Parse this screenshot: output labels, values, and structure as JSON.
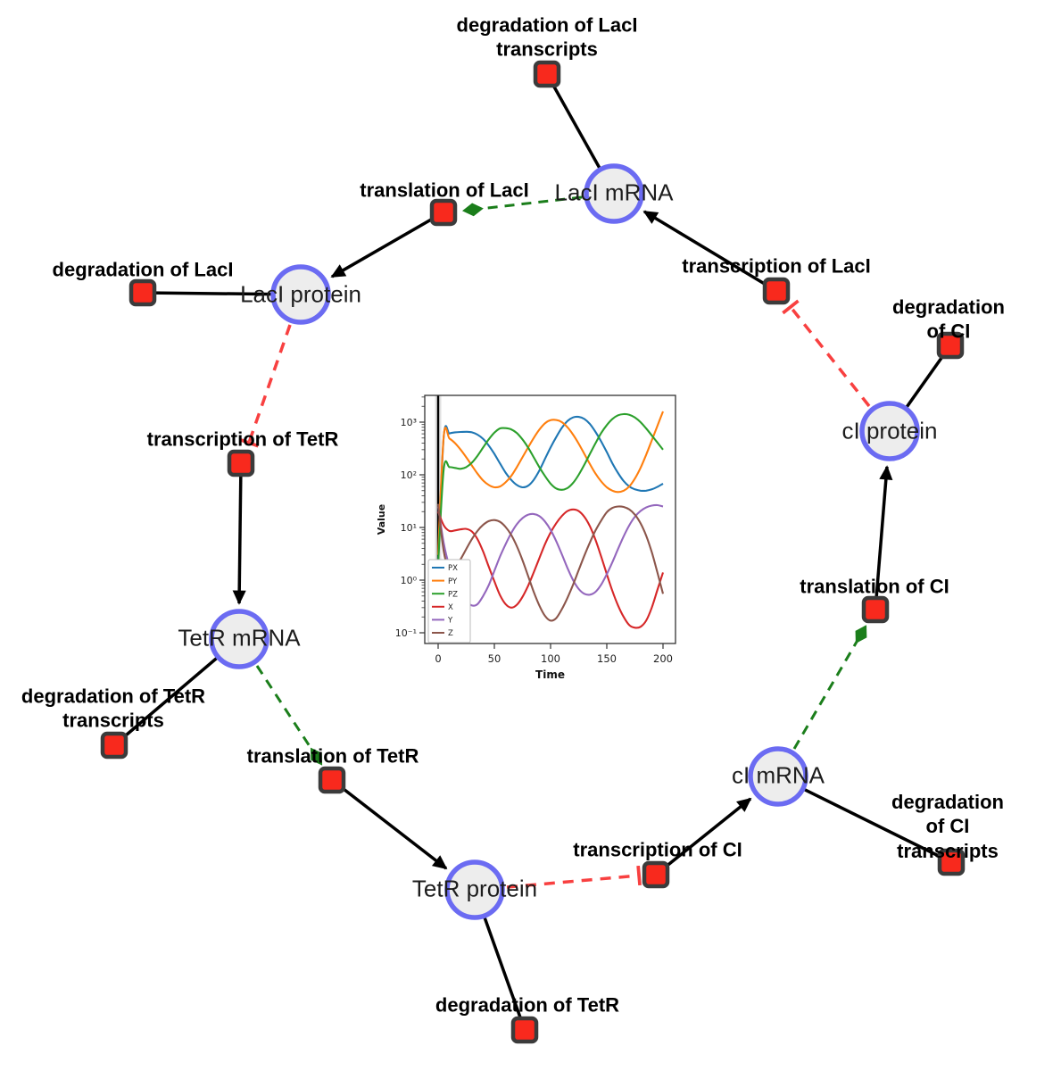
{
  "diagram": {
    "species": [
      {
        "id": "laci-mrna",
        "label": "LacI mRNA"
      },
      {
        "id": "laci-protein",
        "label": "LacI protein"
      },
      {
        "id": "tetr-mrna",
        "label": "TetR mRNA"
      },
      {
        "id": "tetr-protein",
        "label": "TetR protein"
      },
      {
        "id": "ci-mrna",
        "label": "cI mRNA"
      },
      {
        "id": "ci-protein",
        "label": "cI protein"
      }
    ],
    "reactions": [
      {
        "id": "deg-laci-transcripts",
        "label": "degradation of LacI\ntranscripts"
      },
      {
        "id": "translation-laci",
        "label": "translation of LacI"
      },
      {
        "id": "transcription-laci",
        "label": "transcription of LacI"
      },
      {
        "id": "deg-laci",
        "label": "degradation of LacI"
      },
      {
        "id": "transcription-tetr",
        "label": "transcription of TetR"
      },
      {
        "id": "deg-ci",
        "label": "degradation of CI"
      },
      {
        "id": "deg-tetr-transcripts",
        "label": "degradation of TetR\ntranscripts"
      },
      {
        "id": "translation-tetr",
        "label": "translation of TetR"
      },
      {
        "id": "translation-ci",
        "label": "translation of CI"
      },
      {
        "id": "deg-tetr",
        "label": "degradation of TetR"
      },
      {
        "id": "transcription-ci",
        "label": "transcription of CI"
      },
      {
        "id": "deg-ci-transcripts",
        "label": "degradation of CI\ntranscripts"
      }
    ],
    "edges": [
      {
        "from": "LacI mRNA",
        "to": "degradation of LacI transcripts",
        "type": "consumption"
      },
      {
        "from": "transcription of LacI",
        "to": "LacI mRNA",
        "type": "production"
      },
      {
        "from": "LacI mRNA",
        "to": "translation of LacI",
        "type": "modifier"
      },
      {
        "from": "translation of LacI",
        "to": "LacI protein",
        "type": "production"
      },
      {
        "from": "LacI protein",
        "to": "degradation of LacI",
        "type": "consumption"
      },
      {
        "from": "LacI protein",
        "to": "transcription of TetR",
        "type": "inhibition"
      },
      {
        "from": "transcription of TetR",
        "to": "TetR mRNA",
        "type": "production"
      },
      {
        "from": "TetR mRNA",
        "to": "degradation of TetR transcripts",
        "type": "consumption"
      },
      {
        "from": "TetR mRNA",
        "to": "translation of TetR",
        "type": "modifier"
      },
      {
        "from": "translation of TetR",
        "to": "TetR protein",
        "type": "production"
      },
      {
        "from": "TetR protein",
        "to": "degradation of TetR",
        "type": "consumption"
      },
      {
        "from": "TetR protein",
        "to": "transcription of CI",
        "type": "inhibition"
      },
      {
        "from": "transcription of CI",
        "to": "cI mRNA",
        "type": "production"
      },
      {
        "from": "cI mRNA",
        "to": "degradation of CI transcripts",
        "type": "consumption"
      },
      {
        "from": "cI mRNA",
        "to": "translation of CI",
        "type": "modifier"
      },
      {
        "from": "translation of CI",
        "to": "cI protein",
        "type": "production"
      },
      {
        "from": "cI protein",
        "to": "degradation of CI",
        "type": "consumption"
      },
      {
        "from": "cI protein",
        "to": "transcription of LacI",
        "type": "inhibition"
      }
    ],
    "colors": {
      "species_fill": "#ededed",
      "species_border": "#6b6bf2",
      "reaction_fill": "#f8291d",
      "reaction_border": "#3b3b3b",
      "edge_black": "#000000",
      "modifier_green": "#1b7e1b",
      "inhibition_red": "#f84040"
    }
  },
  "chart_data": {
    "type": "line",
    "title": "",
    "xlabel": "Time",
    "ylabel": "Value",
    "yscale": "log",
    "xlim": [
      -8,
      208
    ],
    "ylim": [
      0.07,
      3200
    ],
    "grid": false,
    "legend_position": "lower left",
    "x_ticks": [
      0,
      50,
      100,
      150,
      200
    ],
    "y_ticks": [
      0.1,
      1,
      10,
      100,
      1000
    ],
    "y_tick_labels": [
      "10⁻¹",
      "10⁰",
      "10¹",
      "10²",
      "10³"
    ],
    "initial_spike_x": 0,
    "x": [
      0,
      5,
      10,
      15,
      20,
      25,
      30,
      35,
      40,
      45,
      50,
      55,
      60,
      65,
      70,
      75,
      80,
      85,
      90,
      95,
      100,
      105,
      110,
      115,
      120,
      125,
      130,
      135,
      140,
      145,
      150,
      155,
      160,
      165,
      170,
      175,
      180,
      185,
      190,
      195,
      200
    ],
    "series": [
      {
        "name": "PX",
        "color": "#1f77b4",
        "values": [
          2,
          540,
          610,
          640,
          650,
          655,
          640,
          580,
          480,
          360,
          250,
          165,
          110,
          80,
          64,
          58,
          62,
          80,
          120,
          200,
          330,
          520,
          780,
          1050,
          1230,
          1260,
          1150,
          920,
          650,
          430,
          270,
          165,
          108,
          76,
          60,
          53,
          50,
          50,
          53,
          59,
          68
        ]
      },
      {
        "name": "PY",
        "color": "#ff7f0e",
        "values": [
          3,
          550,
          490,
          400,
          300,
          215,
          150,
          105,
          78,
          64,
          58,
          60,
          72,
          95,
          140,
          215,
          330,
          500,
          720,
          950,
          1090,
          1100,
          1000,
          800,
          580,
          390,
          250,
          160,
          105,
          75,
          58,
          50,
          47,
          50,
          60,
          85,
          135,
          240,
          450,
          850,
          1600
        ]
      },
      {
        "name": "PZ",
        "color": "#2ca02c",
        "values": [
          2,
          130,
          140,
          135,
          130,
          140,
          170,
          230,
          330,
          470,
          630,
          760,
          770,
          730,
          620,
          470,
          330,
          215,
          140,
          95,
          68,
          55,
          52,
          56,
          70,
          100,
          155,
          250,
          400,
          620,
          880,
          1150,
          1350,
          1420,
          1380,
          1230,
          1000,
          760,
          560,
          410,
          300
        ]
      },
      {
        "name": "X",
        "color": "#d62728",
        "values": [
          20,
          11,
          8.6,
          8.8,
          9.2,
          9.4,
          8.4,
          6.0,
          3.5,
          1.8,
          0.95,
          0.52,
          0.35,
          0.3,
          0.34,
          0.48,
          0.78,
          1.4,
          2.6,
          4.8,
          8.0,
          12,
          16.5,
          20.5,
          22,
          20.5,
          16,
          10.5,
          5.8,
          2.8,
          1.3,
          0.62,
          0.33,
          0.2,
          0.14,
          0.125,
          0.13,
          0.17,
          0.3,
          0.65,
          1.4
        ]
      },
      {
        "name": "Y",
        "color": "#9467bd",
        "values": [
          25,
          5,
          1.8,
          0.9,
          0.56,
          0.4,
          0.33,
          0.35,
          0.5,
          0.8,
          1.5,
          2.8,
          4.8,
          7.8,
          11.5,
          15,
          17.5,
          18,
          16.5,
          13,
          9,
          5.5,
          3.1,
          1.7,
          1.0,
          0.68,
          0.55,
          0.53,
          0.6,
          0.82,
          1.3,
          2.2,
          3.9,
          6.8,
          11,
          16,
          20.5,
          24,
          26,
          26.5,
          25
        ]
      },
      {
        "name": "Z",
        "color": "#8c564b",
        "values": [
          28,
          3.5,
          1.6,
          1.75,
          2.5,
          3.9,
          6.0,
          8.6,
          11.2,
          13.2,
          13.8,
          12.8,
          10.2,
          7.2,
          4.4,
          2.4,
          1.2,
          0.6,
          0.33,
          0.21,
          0.17,
          0.19,
          0.28,
          0.46,
          0.82,
          1.55,
          2.9,
          5.2,
          8.8,
          13.5,
          19.5,
          23.5,
          25,
          24.5,
          22,
          17.5,
          12,
          7,
          3.4,
          1.4,
          0.55
        ]
      }
    ]
  }
}
